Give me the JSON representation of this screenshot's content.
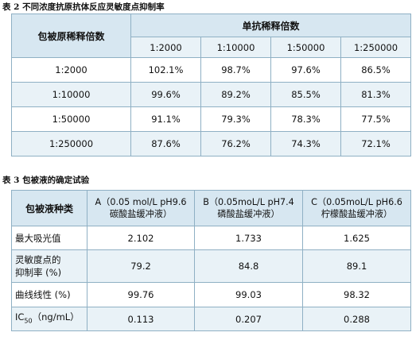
{
  "table2": {
    "caption": "表 2 不同浓度抗原抗体反应灵敏度点抑制率",
    "row_header": "包被原稀释倍数",
    "group_header": "单抗稀释倍数",
    "columns": [
      "1:2000",
      "1:10000",
      "1:50000",
      "1:250000"
    ],
    "rows": [
      {
        "label": "1:2000",
        "values": [
          "102.1%",
          "98.7%",
          "97.6%",
          "86.5%"
        ]
      },
      {
        "label": "1:10000",
        "values": [
          "99.6%",
          "89.2%",
          "85.5%",
          "81.3%"
        ]
      },
      {
        "label": "1:50000",
        "values": [
          "91.1%",
          "79.3%",
          "78.3%",
          "77.5%"
        ]
      },
      {
        "label": "1:250000",
        "values": [
          "87.6%",
          "76.2%",
          "74.3%",
          "72.1%"
        ]
      }
    ]
  },
  "table3": {
    "caption": "表 3 包被液的确定试验",
    "row_header": "包被液种类",
    "columns": [
      {
        "line1": "A（0.05 mol/L pH9.6",
        "line2": "碳酸盐缓冲液）"
      },
      {
        "line1": "B（0.05moL/L pH7.4",
        "line2": "磷酸盐缓冲液）"
      },
      {
        "line1": "C（0.05moL/L pH6.6",
        "line2": "柠檬酸盐缓冲液）"
      }
    ],
    "rows": [
      {
        "label": "最大吸光值",
        "values": [
          "2.102",
          "1.733",
          "1.625"
        ]
      },
      {
        "label_line1": "灵敏度点的",
        "label_line2": "抑制率 (%)",
        "values": [
          "79.2",
          "84.8",
          "89.1"
        ]
      },
      {
        "label": "曲线线性 (%)",
        "values": [
          "99.76",
          "99.03",
          "98.32"
        ]
      },
      {
        "label_main": "IC",
        "label_sub": "50",
        "label_rest": "（ng/mL）",
        "values": [
          "0.113",
          "0.207",
          "0.288"
        ]
      }
    ]
  }
}
